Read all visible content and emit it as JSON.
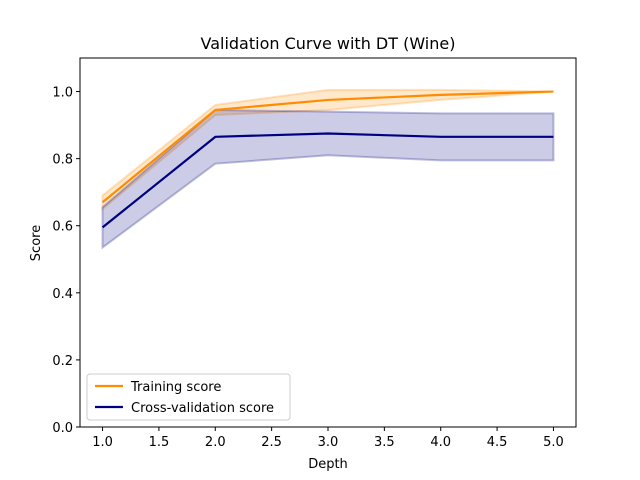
{
  "chart_data": {
    "type": "line",
    "title": "Validation Curve with DT (Wine)",
    "xlabel": "Depth",
    "ylabel": "Score",
    "xlim": [
      0.8,
      5.2
    ],
    "ylim": [
      0.0,
      1.1
    ],
    "xticks": [
      "1.0",
      "1.5",
      "2.0",
      "2.5",
      "3.0",
      "3.5",
      "4.0",
      "4.5",
      "5.0"
    ],
    "yticks": [
      "0.0",
      "0.2",
      "0.4",
      "0.6",
      "0.8",
      "1.0"
    ],
    "x": [
      1,
      2,
      3,
      4,
      5
    ],
    "grid": false,
    "legend_position": "lower-left",
    "series": [
      {
        "name": "Training score",
        "color": "#ff8c00",
        "values": [
          0.67,
          0.945,
          0.975,
          0.99,
          1.0
        ],
        "lower": [
          0.65,
          0.93,
          0.945,
          0.975,
          1.0
        ],
        "upper": [
          0.69,
          0.96,
          1.005,
          1.005,
          1.0
        ]
      },
      {
        "name": "Cross-validation score",
        "color": "#000080",
        "values": [
          0.595,
          0.865,
          0.875,
          0.865,
          0.865
        ],
        "lower": [
          0.535,
          0.785,
          0.81,
          0.795,
          0.795
        ],
        "upper": [
          0.655,
          0.945,
          0.94,
          0.935,
          0.935
        ]
      }
    ]
  }
}
